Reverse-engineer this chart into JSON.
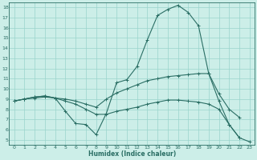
{
  "xlabel": "Humidex (Indice chaleur)",
  "bg_color": "#cceee8",
  "line_color": "#2a6e64",
  "grid_color": "#99d4cc",
  "xlim": [
    -0.5,
    23.5
  ],
  "ylim": [
    4.5,
    18.5
  ],
  "xticks": [
    0,
    1,
    2,
    3,
    4,
    5,
    6,
    7,
    8,
    9,
    10,
    11,
    12,
    13,
    14,
    15,
    16,
    17,
    18,
    19,
    20,
    21,
    22,
    23
  ],
  "yticks": [
    5,
    6,
    7,
    8,
    9,
    10,
    11,
    12,
    13,
    14,
    15,
    16,
    17,
    18
  ],
  "line1_x": [
    0,
    1,
    2,
    3,
    4,
    5,
    6,
    7,
    8,
    9,
    10,
    11,
    12,
    13,
    14,
    15,
    16,
    17,
    18,
    19,
    20,
    21,
    22
  ],
  "line1_y": [
    8.8,
    9.0,
    9.2,
    9.3,
    9.1,
    7.8,
    6.6,
    6.5,
    5.5,
    7.6,
    10.6,
    10.9,
    12.2,
    14.8,
    17.2,
    17.8,
    18.2,
    17.5,
    16.2,
    11.5,
    8.8,
    6.5,
    5.2
  ],
  "line2_x": [
    0,
    1,
    2,
    3,
    4,
    5,
    6,
    7,
    8,
    9,
    10,
    11,
    12,
    13,
    14,
    15,
    16,
    17,
    18,
    19,
    20,
    21,
    22
  ],
  "line2_y": [
    8.8,
    9.0,
    9.2,
    9.3,
    9.1,
    9.0,
    8.8,
    8.5,
    8.2,
    9.0,
    9.6,
    10.0,
    10.4,
    10.8,
    11.0,
    11.2,
    11.3,
    11.4,
    11.5,
    11.5,
    9.5,
    8.0,
    7.2
  ],
  "line3_x": [
    0,
    1,
    2,
    3,
    4,
    5,
    6,
    7,
    8,
    9,
    10,
    11,
    12,
    13,
    14,
    15,
    16,
    17,
    18,
    19,
    20,
    21,
    22,
    23
  ],
  "line3_y": [
    8.8,
    9.0,
    9.1,
    9.2,
    9.1,
    8.8,
    8.5,
    8.0,
    7.5,
    7.5,
    7.8,
    8.0,
    8.2,
    8.5,
    8.7,
    8.9,
    8.9,
    8.8,
    8.7,
    8.5,
    8.0,
    6.5,
    5.2,
    4.8
  ]
}
